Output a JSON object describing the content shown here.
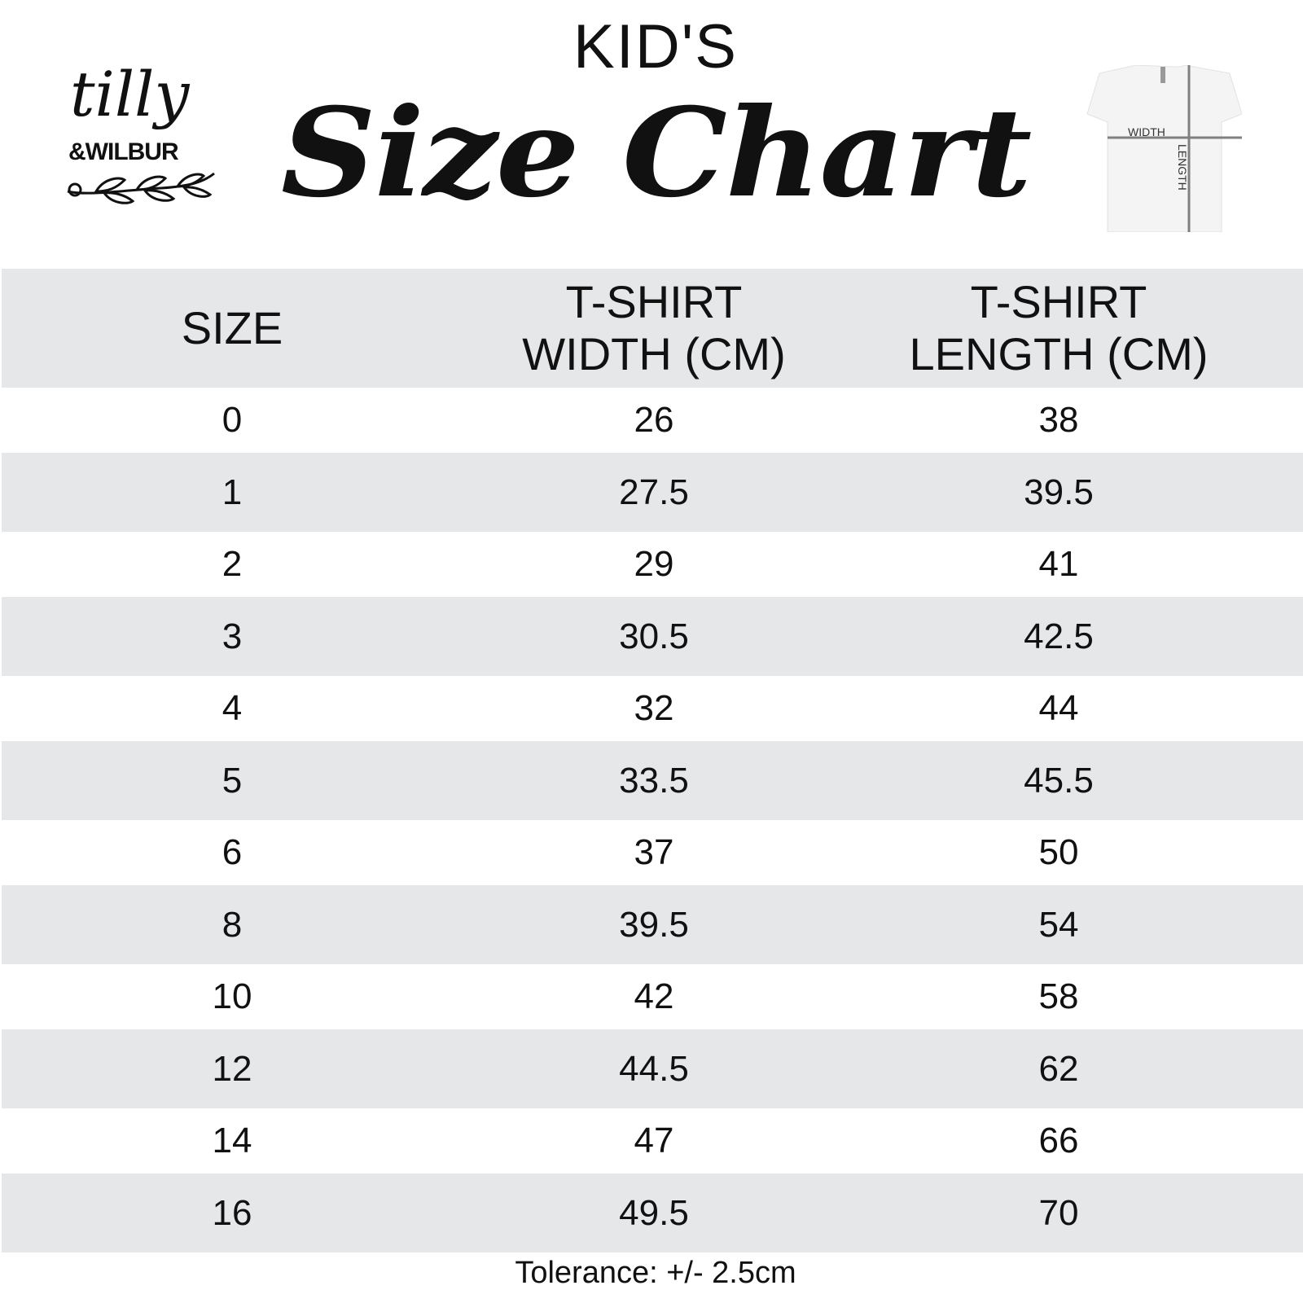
{
  "header": {
    "subtitle": "KID'S",
    "title": "Size Chart"
  },
  "logo": {
    "line1": "tilly",
    "line2": "&WILBUR"
  },
  "shirt_diagram": {
    "width_label": "WIDTH",
    "length_label": "LENGTH",
    "line_color": "#808080"
  },
  "table": {
    "columns": [
      "SIZE",
      "T-SHIRT WIDTH (CM)",
      "T-SHIRT LENGTH (CM)"
    ],
    "column_lines": [
      [
        "SIZE"
      ],
      [
        "T-SHIRT",
        "WIDTH (CM)"
      ],
      [
        "T-SHIRT",
        "LENGTH (CM)"
      ]
    ],
    "rows": [
      [
        "0",
        "26",
        "38"
      ],
      [
        "1",
        "27.5",
        "39.5"
      ],
      [
        "2",
        "29",
        "41"
      ],
      [
        "3",
        "30.5",
        "42.5"
      ],
      [
        "4",
        "32",
        "44"
      ],
      [
        "5",
        "33.5",
        "45.5"
      ],
      [
        "6",
        "37",
        "50"
      ],
      [
        "8",
        "39.5",
        "54"
      ],
      [
        "10",
        "42",
        "58"
      ],
      [
        "12",
        "44.5",
        "62"
      ],
      [
        "14",
        "47",
        "66"
      ],
      [
        "16",
        "49.5",
        "70"
      ]
    ],
    "stripe_color": "#e6e7e9"
  },
  "footer": {
    "tolerance": "Tolerance: +/- 2.5cm"
  }
}
